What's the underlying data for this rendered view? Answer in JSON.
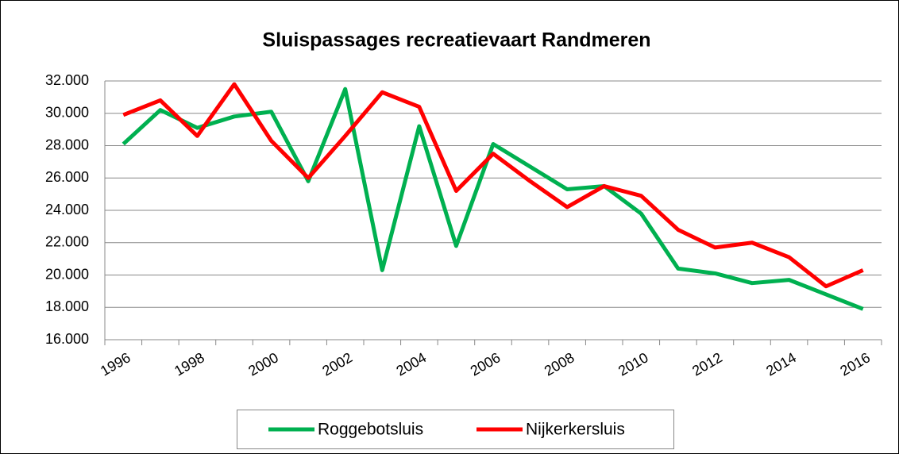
{
  "chart_data": {
    "type": "line",
    "title": "Sluispassages recreatievaart Randmeren",
    "categories": [
      "1996",
      null,
      "1998",
      null,
      "2000",
      null,
      "2002",
      null,
      "2004",
      null,
      "2006",
      null,
      "2008",
      null,
      "2010",
      null,
      "2012",
      null,
      "2014",
      null,
      "2016"
    ],
    "series": [
      {
        "name": "Roggebotsluis",
        "color": "#00b050",
        "values": [
          28100,
          30200,
          29100,
          29800,
          30100,
          25800,
          31500,
          20300,
          29200,
          21800,
          28100,
          26700,
          25300,
          25500,
          23800,
          20400,
          20100,
          19500,
          19700,
          18800,
          17900
        ]
      },
      {
        "name": "Nijkerkersluis",
        "color": "#ff0000",
        "values": [
          29900,
          30800,
          28600,
          31800,
          28300,
          26000,
          28600,
          31300,
          30400,
          25200,
          27500,
          25800,
          24200,
          25500,
          24900,
          22800,
          21700,
          22000,
          21100,
          19300,
          20300
        ]
      }
    ],
    "ylim": [
      16000,
      32000
    ],
    "yticks": [
      {
        "value": 16000,
        "label": "16.000"
      },
      {
        "value": 18000,
        "label": "18.000"
      },
      {
        "value": 20000,
        "label": "20.000"
      },
      {
        "value": 22000,
        "label": "22.000"
      },
      {
        "value": 24000,
        "label": "24.000"
      },
      {
        "value": 26000,
        "label": "26.000"
      },
      {
        "value": 28000,
        "label": "28.000"
      },
      {
        "value": 30000,
        "label": "30.000"
      },
      {
        "value": 32000,
        "label": "32.000"
      }
    ],
    "grid": true,
    "legend": "bottom"
  }
}
